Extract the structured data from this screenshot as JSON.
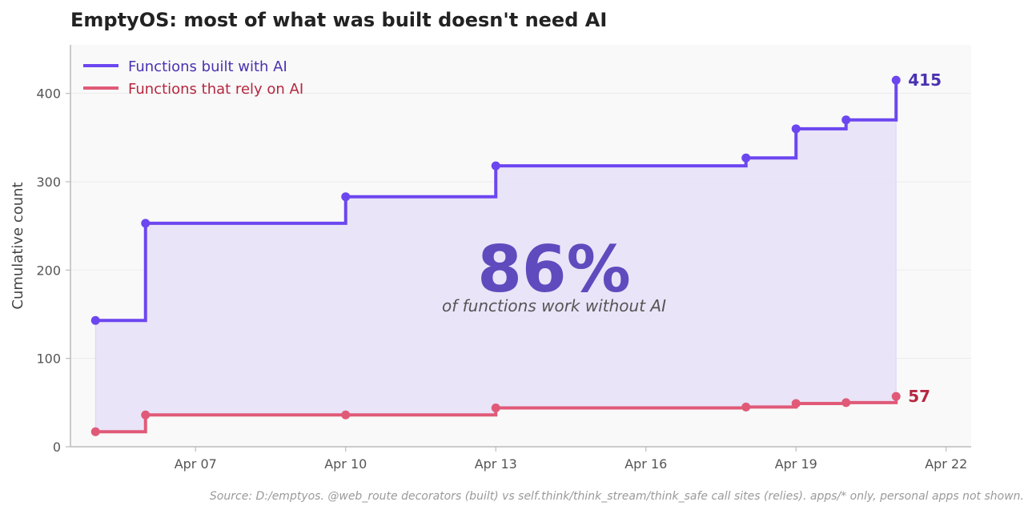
{
  "chart_data": {
    "type": "line",
    "step": "post",
    "title": "EmptyOS: most of what was built doesn't need AI",
    "ylabel": "Cumulative count",
    "xlabel": "",
    "ylim": [
      0,
      455
    ],
    "yticks": [
      0,
      100,
      200,
      300,
      400
    ],
    "xlim": [
      "2026-04-04T12:00",
      "2026-04-22T12:00"
    ],
    "xticks": [
      {
        "date": "2026-04-07",
        "label": "Apr 07"
      },
      {
        "date": "2026-04-10",
        "label": "Apr 10"
      },
      {
        "date": "2026-04-13",
        "label": "Apr 13"
      },
      {
        "date": "2026-04-16",
        "label": "Apr 16"
      },
      {
        "date": "2026-04-19",
        "label": "Apr 19"
      },
      {
        "date": "2026-04-22",
        "label": "Apr 22"
      }
    ],
    "grid": "horizontal",
    "legend_position": "top-left",
    "series": [
      {
        "name": "Functions built with AI",
        "color": "#6c47f0",
        "fill": true,
        "end_label": "415",
        "end_label_color": "#4a32b0",
        "points": [
          {
            "x": "2026-04-05",
            "y": 143
          },
          {
            "x": "2026-04-06",
            "y": 253
          },
          {
            "x": "2026-04-10",
            "y": 283
          },
          {
            "x": "2026-04-13",
            "y": 318
          },
          {
            "x": "2026-04-18",
            "y": 327
          },
          {
            "x": "2026-04-19",
            "y": 360
          },
          {
            "x": "2026-04-20",
            "y": 370
          },
          {
            "x": "2026-04-21",
            "y": 415
          }
        ]
      },
      {
        "name": "Functions that rely on AI",
        "color": "#e05a78",
        "fill": false,
        "end_label": "57",
        "end_label_color": "#b5283f",
        "points": [
          {
            "x": "2026-04-05",
            "y": 17
          },
          {
            "x": "2026-04-06",
            "y": 36
          },
          {
            "x": "2026-04-10",
            "y": 36
          },
          {
            "x": "2026-04-13",
            "y": 44
          },
          {
            "x": "2026-04-18",
            "y": 45
          },
          {
            "x": "2026-04-19",
            "y": 49
          },
          {
            "x": "2026-04-20",
            "y": 50
          },
          {
            "x": "2026-04-21",
            "y": 57
          }
        ]
      }
    ],
    "annotation": {
      "value": "86%",
      "caption": "of functions work without AI"
    },
    "source": "Source: D:/emptyos. @web_route decorators (built) vs self.think/think_stream/think_safe call sites (relies). apps/* only, personal apps not shown."
  },
  "colors": {
    "plot_background": "#f9f9f9",
    "grid": "#ececec",
    "axis": "#bbbbbb",
    "area_fill": "#e6e1f8"
  }
}
